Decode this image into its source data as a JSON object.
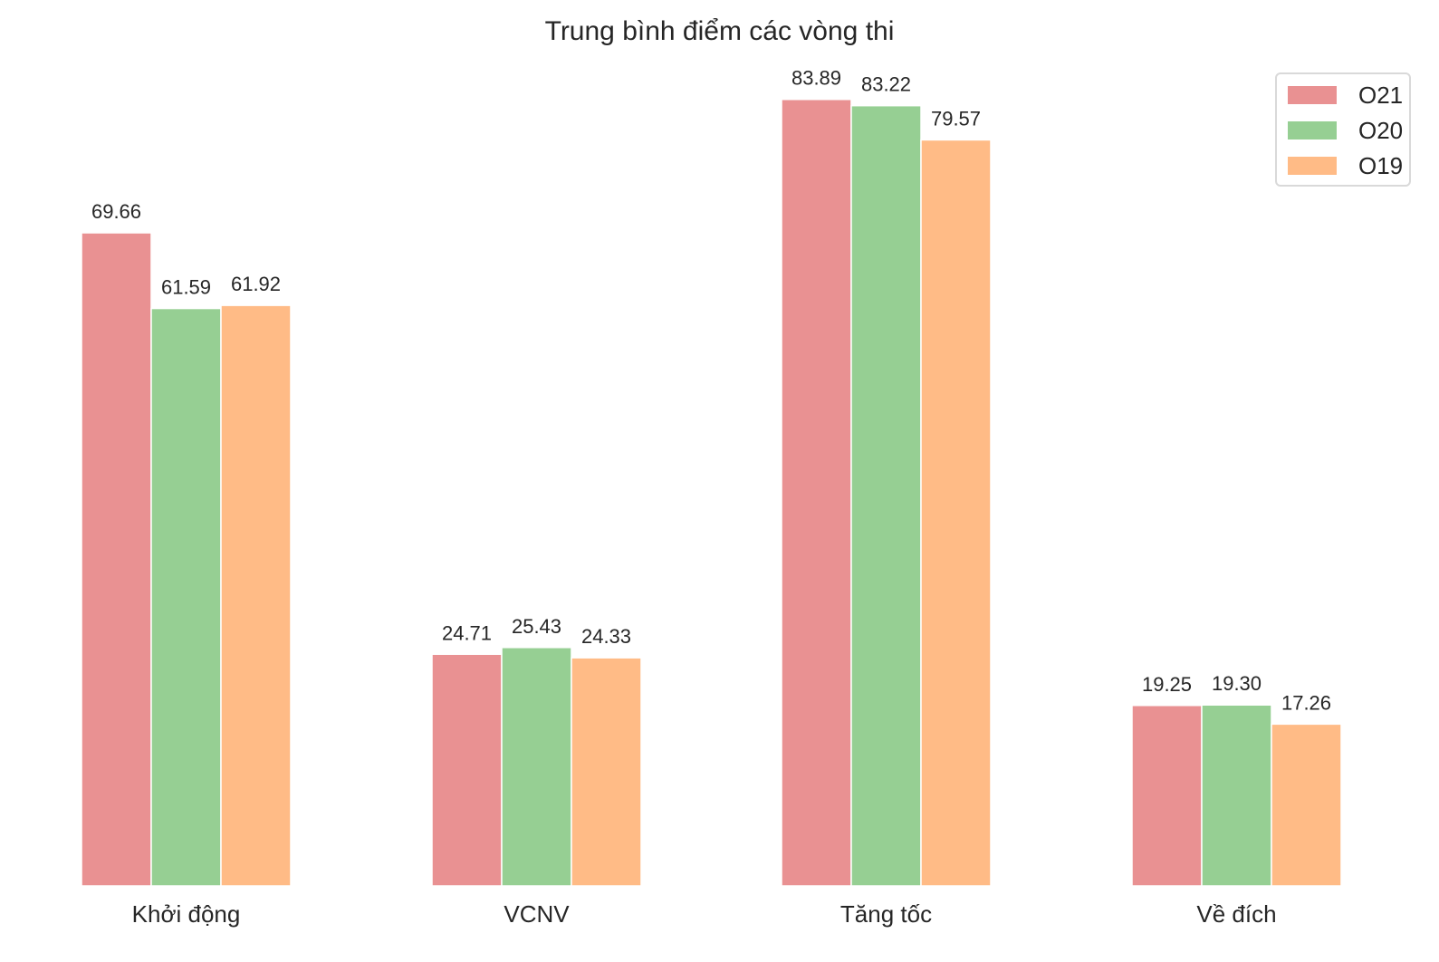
{
  "chart_data": {
    "type": "bar",
    "title": "Trung bình điểm các vòng thi",
    "xlabel": "",
    "ylabel": "",
    "ylim": [
      0,
      88
    ],
    "categories": [
      "Khởi động",
      "VCNV",
      "Tăng tốc",
      "Về đích"
    ],
    "series": [
      {
        "name": "O21",
        "color": "#e99192",
        "values": [
          69.66,
          24.71,
          83.89,
          19.25
        ]
      },
      {
        "name": "O20",
        "color": "#96cf93",
        "values": [
          61.59,
          25.43,
          83.22,
          19.3
        ]
      },
      {
        "name": "O19",
        "color": "#ffbb86",
        "values": [
          61.92,
          24.33,
          79.57,
          17.26
        ]
      }
    ],
    "grid": false,
    "legend_position": "top-right"
  }
}
